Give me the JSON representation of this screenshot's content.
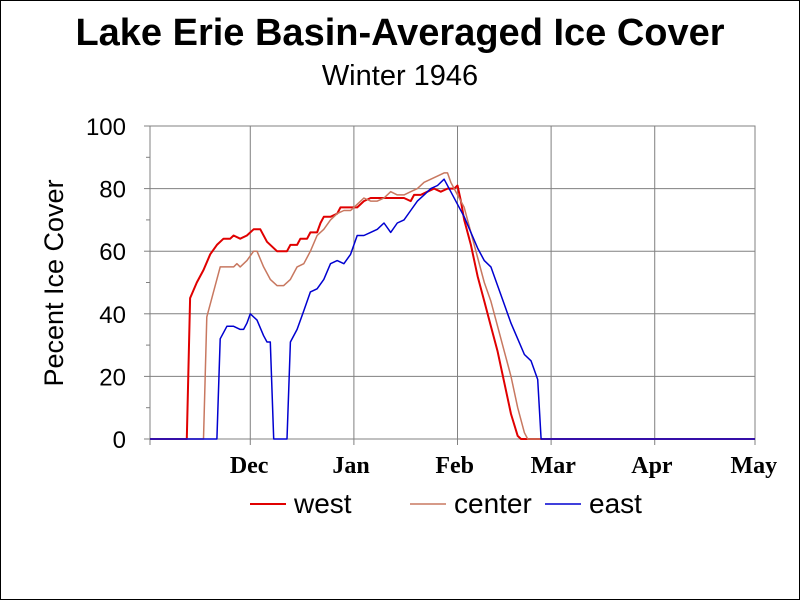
{
  "chart_data": {
    "type": "line",
    "title": "Lake Erie Basin-Averaged Ice Cover",
    "subtitle": "Winter 1946",
    "ylabel": "Pecent Ice Cover",
    "xlabel": "",
    "ylim": [
      0,
      100
    ],
    "yticks": [
      "0",
      "20",
      "40",
      "60",
      "80",
      "100"
    ],
    "x_unit": "day of season (day 0 = Nov 1)",
    "xlim": [
      0,
      181
    ],
    "categories": [
      "Dec",
      "Jan",
      "Feb",
      "Mar",
      "Apr",
      "May"
    ],
    "month_start_days": [
      30,
      61,
      92,
      120,
      151,
      181
    ],
    "grid": true,
    "legend_position": "bottom",
    "series": [
      {
        "name": "west",
        "color": "#e00000",
        "points": [
          [
            0,
            0
          ],
          [
            11,
            0
          ],
          [
            12,
            45
          ],
          [
            14,
            50
          ],
          [
            16,
            54
          ],
          [
            18,
            59
          ],
          [
            20,
            62
          ],
          [
            22,
            64
          ],
          [
            24,
            64
          ],
          [
            25,
            65
          ],
          [
            27,
            64
          ],
          [
            29,
            65
          ],
          [
            31,
            67
          ],
          [
            33,
            67
          ],
          [
            35,
            63
          ],
          [
            38,
            60
          ],
          [
            41,
            60
          ],
          [
            42,
            62
          ],
          [
            44,
            62
          ],
          [
            45,
            64
          ],
          [
            47,
            64
          ],
          [
            48,
            66
          ],
          [
            50,
            66
          ],
          [
            51,
            69
          ],
          [
            52,
            71
          ],
          [
            54,
            71
          ],
          [
            56,
            72
          ],
          [
            57,
            74
          ],
          [
            60,
            74
          ],
          [
            62,
            74
          ],
          [
            64,
            76
          ],
          [
            66,
            77
          ],
          [
            68,
            77
          ],
          [
            70,
            77
          ],
          [
            72,
            77
          ],
          [
            74,
            77
          ],
          [
            76,
            77
          ],
          [
            78,
            76
          ],
          [
            79,
            78
          ],
          [
            81,
            78
          ],
          [
            83,
            79
          ],
          [
            85,
            80
          ],
          [
            87,
            79
          ],
          [
            89,
            80
          ],
          [
            91,
            80
          ],
          [
            92,
            81
          ],
          [
            93,
            76
          ],
          [
            94,
            70
          ],
          [
            96,
            62
          ],
          [
            98,
            52
          ],
          [
            100,
            44
          ],
          [
            102,
            36
          ],
          [
            104,
            28
          ],
          [
            106,
            18
          ],
          [
            108,
            8
          ],
          [
            110,
            1
          ],
          [
            111,
            0
          ],
          [
            181,
            0
          ]
        ]
      },
      {
        "name": "center",
        "color": "#c87860",
        "points": [
          [
            0,
            0
          ],
          [
            16,
            0
          ],
          [
            17,
            39
          ],
          [
            19,
            47
          ],
          [
            21,
            55
          ],
          [
            23,
            55
          ],
          [
            25,
            55
          ],
          [
            26,
            56
          ],
          [
            27,
            55
          ],
          [
            29,
            57
          ],
          [
            31,
            60
          ],
          [
            32,
            60
          ],
          [
            34,
            55
          ],
          [
            36,
            51
          ],
          [
            38,
            49
          ],
          [
            40,
            49
          ],
          [
            42,
            51
          ],
          [
            44,
            55
          ],
          [
            46,
            56
          ],
          [
            48,
            60
          ],
          [
            50,
            65
          ],
          [
            52,
            67
          ],
          [
            54,
            70
          ],
          [
            56,
            72
          ],
          [
            58,
            73
          ],
          [
            60,
            73
          ],
          [
            62,
            75
          ],
          [
            64,
            77
          ],
          [
            66,
            76
          ],
          [
            68,
            76
          ],
          [
            70,
            77
          ],
          [
            72,
            79
          ],
          [
            74,
            78
          ],
          [
            76,
            78
          ],
          [
            78,
            79
          ],
          [
            80,
            80
          ],
          [
            82,
            82
          ],
          [
            84,
            83
          ],
          [
            86,
            84
          ],
          [
            88,
            85
          ],
          [
            89,
            85
          ],
          [
            90,
            82
          ],
          [
            92,
            78
          ],
          [
            94,
            74
          ],
          [
            96,
            66
          ],
          [
            98,
            58
          ],
          [
            100,
            50
          ],
          [
            102,
            44
          ],
          [
            104,
            36
          ],
          [
            106,
            28
          ],
          [
            108,
            20
          ],
          [
            110,
            10
          ],
          [
            112,
            2
          ],
          [
            113,
            0
          ],
          [
            181,
            0
          ]
        ]
      },
      {
        "name": "east",
        "color": "#0000d0",
        "points": [
          [
            0,
            0
          ],
          [
            20,
            0
          ],
          [
            21,
            32
          ],
          [
            23,
            36
          ],
          [
            25,
            36
          ],
          [
            27,
            35
          ],
          [
            28,
            35
          ],
          [
            29,
            37
          ],
          [
            30,
            40
          ],
          [
            32,
            38
          ],
          [
            34,
            33
          ],
          [
            35,
            31
          ],
          [
            36,
            31
          ],
          [
            37,
            0
          ],
          [
            41,
            0
          ],
          [
            42,
            31
          ],
          [
            44,
            35
          ],
          [
            46,
            41
          ],
          [
            48,
            47
          ],
          [
            50,
            48
          ],
          [
            52,
            51
          ],
          [
            54,
            56
          ],
          [
            56,
            57
          ],
          [
            58,
            56
          ],
          [
            60,
            59
          ],
          [
            62,
            65
          ],
          [
            64,
            65
          ],
          [
            66,
            66
          ],
          [
            68,
            67
          ],
          [
            70,
            69
          ],
          [
            72,
            66
          ],
          [
            74,
            69
          ],
          [
            76,
            70
          ],
          [
            78,
            73
          ],
          [
            80,
            76
          ],
          [
            82,
            78
          ],
          [
            84,
            80
          ],
          [
            86,
            81
          ],
          [
            88,
            83
          ],
          [
            90,
            79
          ],
          [
            92,
            75
          ],
          [
            94,
            71
          ],
          [
            96,
            66
          ],
          [
            98,
            61
          ],
          [
            100,
            57
          ],
          [
            102,
            55
          ],
          [
            104,
            49
          ],
          [
            106,
            43
          ],
          [
            108,
            37
          ],
          [
            110,
            32
          ],
          [
            112,
            27
          ],
          [
            114,
            25
          ],
          [
            116,
            19
          ],
          [
            117,
            0
          ],
          [
            181,
            0
          ]
        ]
      }
    ]
  }
}
